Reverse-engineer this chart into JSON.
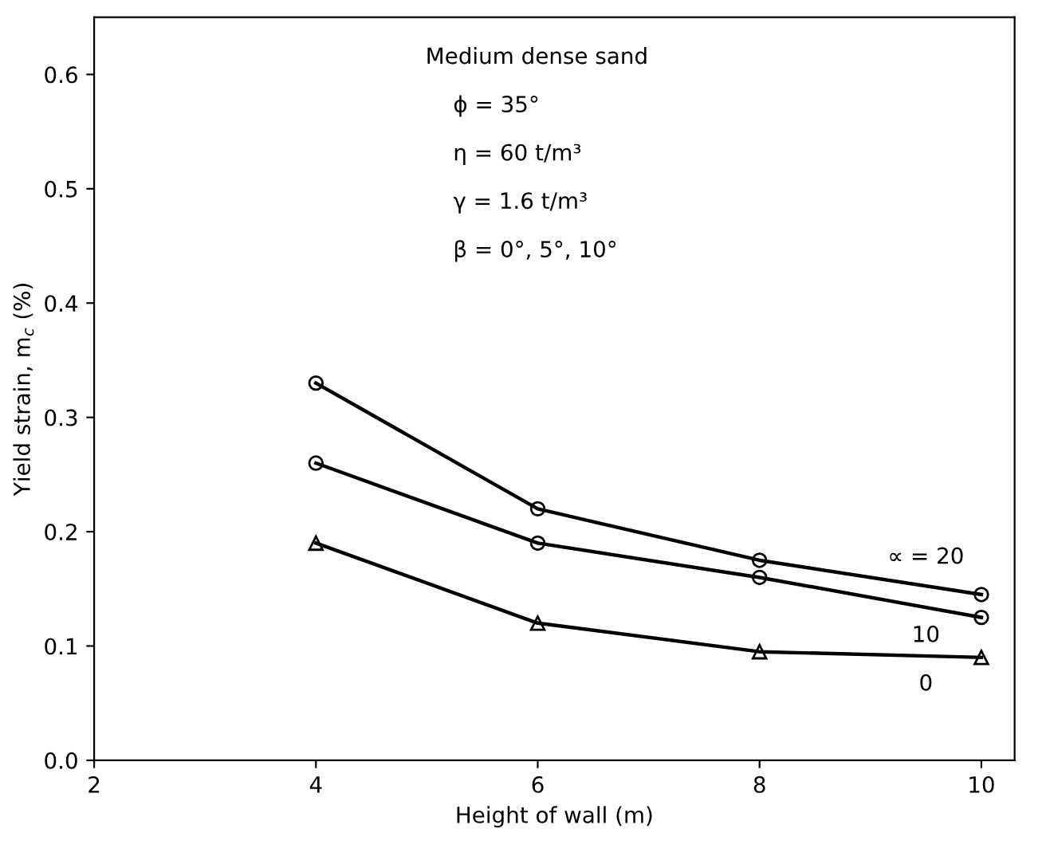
{
  "chart_data": {
    "type": "line",
    "xlabel": "Height of wall (m)",
    "ylabel": "Yield strain, m$_{c}$ (%)",
    "annotations": [
      "Medium dense sand",
      "ϕ = 35°",
      "η = 60 t/m³",
      "γ = 1.6 t/m³",
      "β = 0°, 5°, 10°"
    ],
    "series": [
      {
        "name": "∝ = 20",
        "color": "#000000",
        "marker": "circle",
        "x": [
          4,
          6,
          8,
          10
        ],
        "values": [
          0.33,
          0.22,
          0.175,
          0.145
        ]
      },
      {
        "name": "10",
        "color": "#000000",
        "marker": "circle",
        "x": [
          4,
          6,
          8,
          10
        ],
        "values": [
          0.26,
          0.19,
          0.16,
          0.125
        ]
      },
      {
        "name": "0",
        "color": "#000000",
        "marker": "triangle",
        "x": [
          4,
          6,
          8,
          10
        ],
        "values": [
          0.19,
          0.12,
          0.095,
          0.09
        ]
      }
    ],
    "xlim": [
      2,
      10.3
    ],
    "ylim": [
      0,
      0.65
    ],
    "xticks": [
      2,
      4,
      6,
      8,
      10
    ],
    "yticks": [
      {
        "value": 0,
        "label": "0.0"
      },
      {
        "value": 0.1,
        "label": "0.1"
      },
      {
        "value": 0.2,
        "label": "0.2"
      },
      {
        "value": 0.3,
        "label": "0.3"
      },
      {
        "value": 0.4,
        "label": "0.4"
      },
      {
        "value": 0.5,
        "label": "0.5"
      },
      {
        "value": 0.6,
        "label": "0.6"
      }
    ],
    "grid": false,
    "legend": false,
    "line_style": "solid"
  }
}
